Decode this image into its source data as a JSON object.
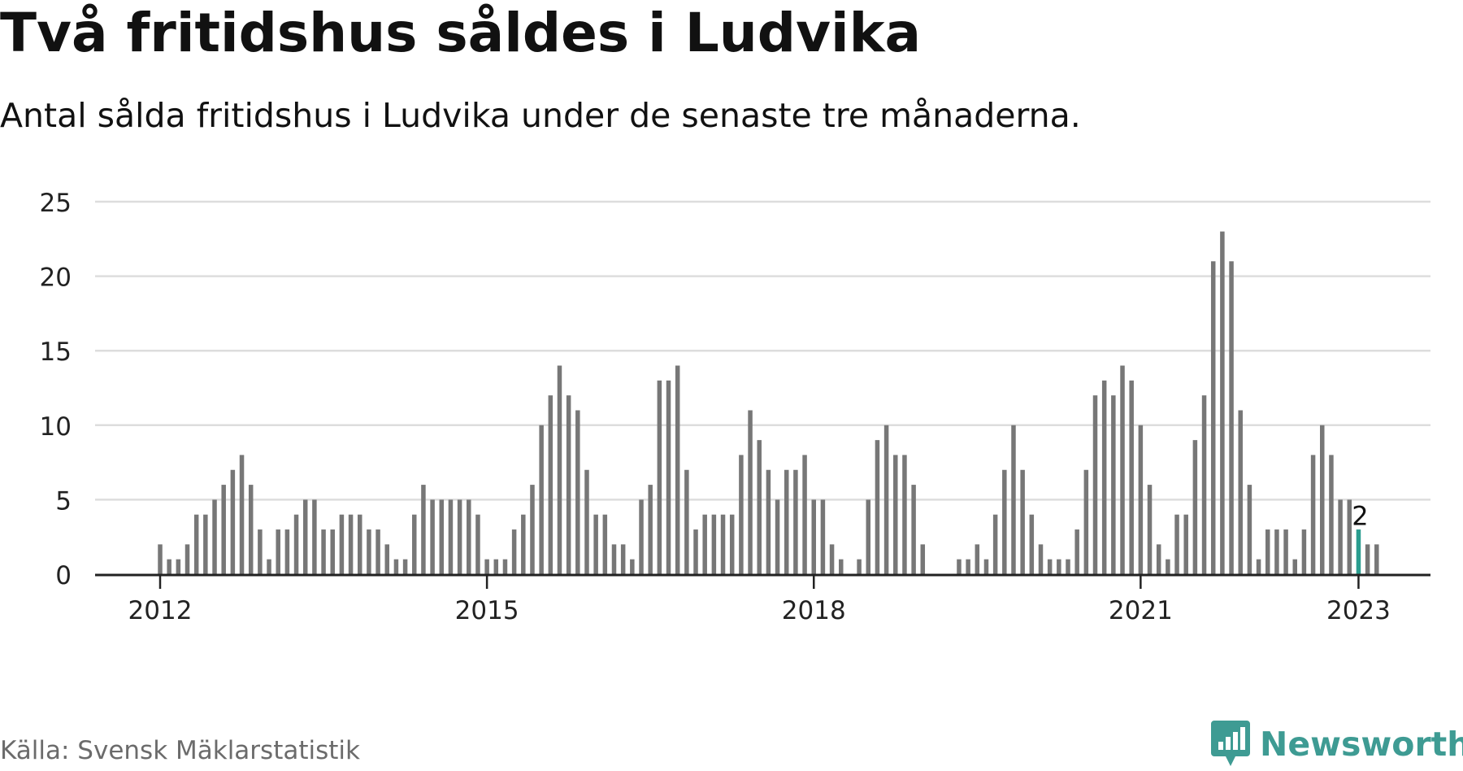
{
  "header": {
    "title": "Två fritidshus såldes i Ludvika",
    "subtitle": "Antal sålda fritidshus i Ludvika under de senaste tre månaderna."
  },
  "footer": {
    "source": "Källa: Svensk Mäklarstatistik",
    "brand": "Newsworthy",
    "brand_icon": "newsworthy-logo-icon"
  },
  "colors": {
    "bar": "#777777",
    "highlight": "#2a9d8f",
    "grid": "#dddddd",
    "axis": "#222222",
    "brand": "#3e9b93"
  },
  "chart_data": {
    "type": "bar",
    "title": "Två fritidshus såldes i Ludvika",
    "subtitle": "Antal sålda fritidshus i Ludvika under de senaste tre månaderna.",
    "xlabel": "",
    "ylabel": "",
    "ylim": [
      0,
      25
    ],
    "yticks": [
      "0",
      "5",
      "10",
      "15",
      "20",
      "25"
    ],
    "grid": true,
    "legend": "none",
    "start": "2012-01",
    "xticks": [
      {
        "label": "2012",
        "at": "2012-01"
      },
      {
        "label": "2015",
        "at": "2015-01"
      },
      {
        "label": "2018",
        "at": "2018-01"
      },
      {
        "label": "2021",
        "at": "2021-01"
      },
      {
        "label": "2023",
        "at": "2023-01"
      }
    ],
    "values": [
      2,
      1,
      1,
      2,
      4,
      4,
      5,
      6,
      7,
      8,
      6,
      3,
      1,
      3,
      3,
      4,
      5,
      5,
      3,
      3,
      4,
      4,
      4,
      3,
      3,
      2,
      1,
      1,
      4,
      6,
      5,
      5,
      5,
      5,
      5,
      4,
      1,
      1,
      1,
      3,
      4,
      6,
      10,
      12,
      14,
      12,
      11,
      7,
      4,
      4,
      2,
      2,
      1,
      5,
      6,
      13,
      13,
      14,
      7,
      3,
      4,
      4,
      4,
      4,
      8,
      11,
      9,
      7,
      5,
      7,
      7,
      8,
      5,
      5,
      2,
      1,
      0,
      1,
      5,
      9,
      10,
      8,
      8,
      6,
      2,
      0,
      0,
      0,
      1,
      1,
      2,
      1,
      4,
      7,
      10,
      7,
      4,
      2,
      1,
      1,
      1,
      3,
      7,
      12,
      13,
      12,
      14,
      13,
      10,
      6,
      2,
      1,
      4,
      4,
      9,
      12,
      21,
      23,
      21,
      11,
      6,
      1,
      3,
      3,
      3,
      1,
      3,
      8,
      10,
      8,
      5,
      5,
      3,
      2,
      2
    ],
    "highlight": {
      "label": "2",
      "value": 2,
      "date": "2023-01"
    }
  }
}
